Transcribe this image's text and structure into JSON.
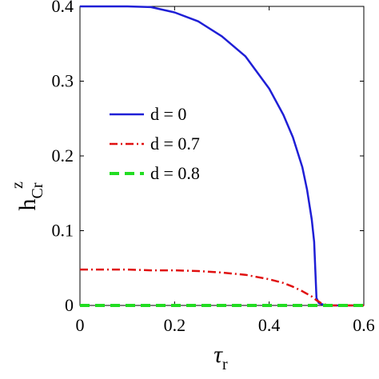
{
  "chart_data": {
    "type": "line",
    "xlim": [
      0,
      0.6
    ],
    "ylim": [
      0,
      0.4
    ],
    "xticks": [
      0,
      0.2,
      0.4,
      0.6
    ],
    "yticks": [
      0,
      0.1,
      0.2,
      0.3,
      0.4
    ],
    "xtick_labels": [
      "0",
      "0.2",
      "0.4",
      "0.6"
    ],
    "ytick_labels": [
      "0",
      "0.1",
      "0.2",
      "0.3",
      "0.4"
    ],
    "xlabel": {
      "symbol": "τ",
      "subscript": "r"
    },
    "ylabel": {
      "symbol": "h",
      "superscript": "z",
      "subscript": "Cr"
    },
    "legend_position": "center-left",
    "series": [
      {
        "name": "d = 0",
        "color": "#1f1fd6",
        "dash": "solid",
        "x": [
          0,
          0.05,
          0.1,
          0.15,
          0.2,
          0.25,
          0.3,
          0.35,
          0.4,
          0.43,
          0.45,
          0.47,
          0.48,
          0.49,
          0.495,
          0.5,
          0.505,
          0.52,
          0.55,
          0.6
        ],
        "y": [
          0.4,
          0.4,
          0.4,
          0.399,
          0.392,
          0.38,
          0.36,
          0.333,
          0.29,
          0.255,
          0.225,
          0.185,
          0.155,
          0.115,
          0.085,
          0.01,
          0.003,
          0,
          0,
          0
        ]
      },
      {
        "name": "d = 0.7",
        "color": "#e01010",
        "dash": "dashdot",
        "x": [
          0,
          0.05,
          0.1,
          0.15,
          0.2,
          0.25,
          0.3,
          0.35,
          0.4,
          0.43,
          0.45,
          0.47,
          0.49,
          0.5,
          0.51,
          0.52,
          0.53,
          0.55,
          0.6
        ],
        "y": [
          0.048,
          0.048,
          0.048,
          0.047,
          0.047,
          0.046,
          0.044,
          0.041,
          0.035,
          0.03,
          0.025,
          0.019,
          0.012,
          0.007,
          0.003,
          0.001,
          0,
          0,
          0
        ]
      },
      {
        "name": "d = 0.8",
        "color": "#22dd22",
        "dash": "dashed",
        "x": [
          0,
          0.6
        ],
        "y": [
          0,
          0
        ]
      }
    ]
  }
}
